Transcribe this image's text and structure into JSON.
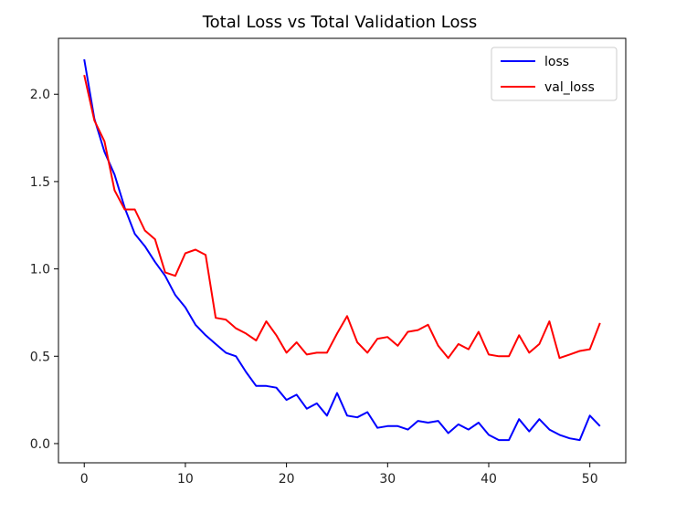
{
  "chart_data": {
    "type": "line",
    "title": "Total Loss vs Total Validation Loss",
    "xlabel": "",
    "ylabel": "",
    "xlim": [
      -2.55,
      53.55
    ],
    "ylim": [
      -0.11,
      2.32
    ],
    "xticks": [
      0,
      10,
      20,
      30,
      40,
      50
    ],
    "yticks": [
      0.0,
      0.5,
      1.0,
      1.5,
      2.0
    ],
    "xtick_labels": [
      "0",
      "10",
      "20",
      "30",
      "40",
      "50"
    ],
    "ytick_labels": [
      "0.0",
      "0.5",
      "1.0",
      "1.5",
      "2.0"
    ],
    "legend_position": "top-right",
    "x": [
      0,
      1,
      2,
      3,
      4,
      5,
      6,
      7,
      8,
      9,
      10,
      11,
      12,
      13,
      14,
      15,
      16,
      17,
      18,
      19,
      20,
      21,
      22,
      23,
      24,
      25,
      26,
      27,
      28,
      29,
      30,
      31,
      32,
      33,
      34,
      35,
      36,
      37,
      38,
      39,
      40,
      41,
      42,
      43,
      44,
      45,
      46,
      47,
      48,
      49,
      50,
      51
    ],
    "series": [
      {
        "name": "loss",
        "color": "#0000ff",
        "values": [
          2.2,
          1.86,
          1.67,
          1.54,
          1.35,
          1.2,
          1.13,
          1.04,
          0.96,
          0.85,
          0.78,
          0.68,
          0.62,
          0.57,
          0.52,
          0.5,
          0.41,
          0.33,
          0.33,
          0.32,
          0.25,
          0.28,
          0.2,
          0.23,
          0.16,
          0.29,
          0.16,
          0.15,
          0.18,
          0.09,
          0.1,
          0.1,
          0.08,
          0.13,
          0.12,
          0.13,
          0.06,
          0.11,
          0.08,
          0.12,
          0.05,
          0.02,
          0.02,
          0.14,
          0.07,
          0.14,
          0.08,
          0.05,
          0.03,
          0.02,
          0.16,
          0.1
        ]
      },
      {
        "name": "val_loss",
        "color": "#ff0000",
        "values": [
          2.11,
          1.85,
          1.73,
          1.45,
          1.34,
          1.34,
          1.22,
          1.17,
          0.98,
          0.96,
          1.09,
          1.11,
          1.08,
          0.72,
          0.71,
          0.66,
          0.63,
          0.59,
          0.7,
          0.62,
          0.52,
          0.58,
          0.51,
          0.52,
          0.52,
          0.63,
          0.73,
          0.58,
          0.52,
          0.6,
          0.61,
          0.56,
          0.64,
          0.65,
          0.68,
          0.56,
          0.49,
          0.57,
          0.54,
          0.64,
          0.51,
          0.5,
          0.5,
          0.62,
          0.52,
          0.57,
          0.7,
          0.49,
          0.51,
          0.53,
          0.54,
          0.69
        ]
      }
    ]
  }
}
